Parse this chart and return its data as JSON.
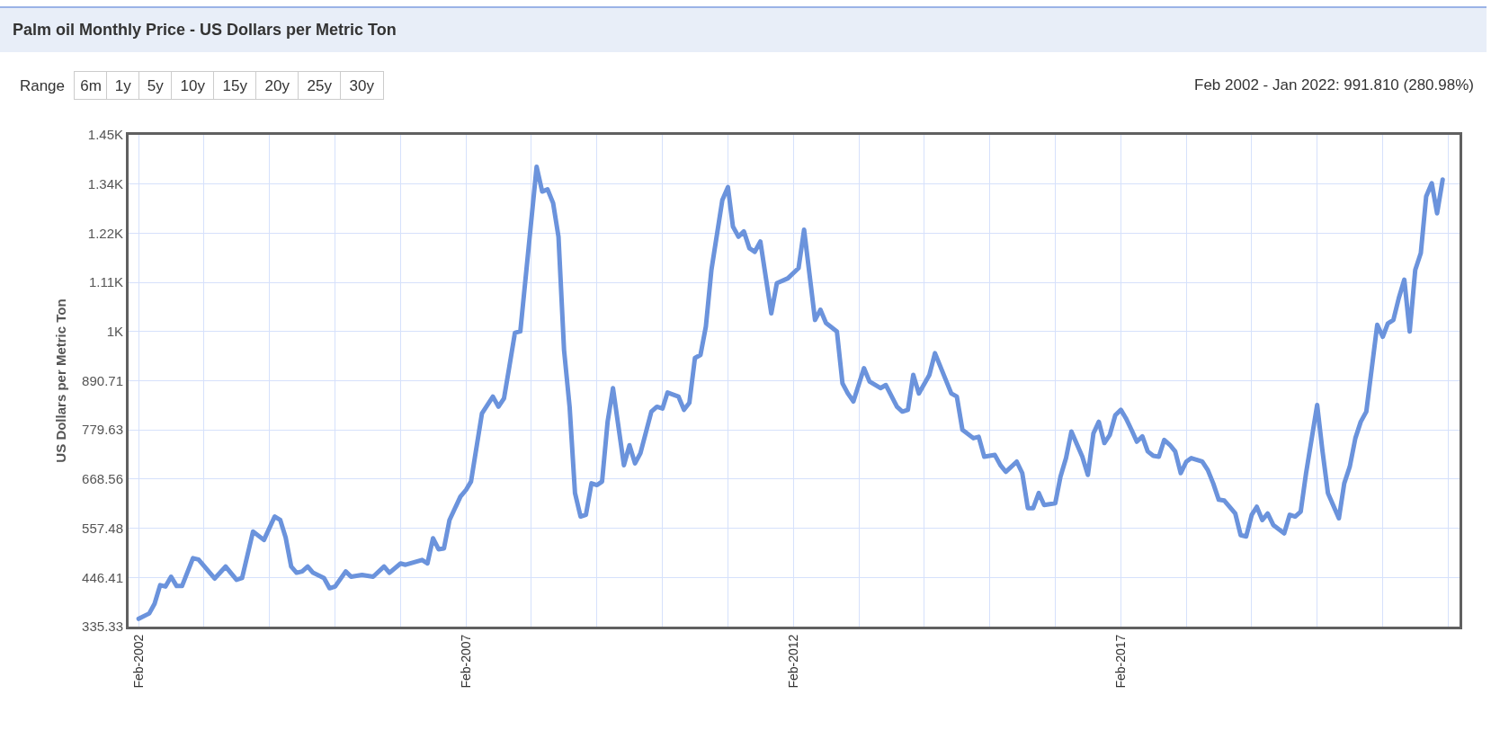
{
  "chart_data": {
    "type": "line",
    "title": "Palm oil Monthly Price - US Dollars per Metric Ton",
    "subtitle": "Feb 2002 - Jan 2022: 991.810 (280.98%)",
    "annotations": [
      "Range",
      "6m",
      "1y",
      "5y",
      "10y",
      "15y",
      "20y",
      "25y",
      "30y"
    ],
    "ylabel": "US Dollars per Metric Ton",
    "x": [
      "2002-02",
      "2002-04",
      "2002-05",
      "2002-06",
      "2002-07",
      "2002-08",
      "2002-09",
      "2002-10",
      "2002-12",
      "2003-01",
      "2003-04",
      "2003-06",
      "2003-08",
      "2003-09",
      "2003-11",
      "2004-01",
      "2004-03",
      "2004-04",
      "2004-05",
      "2004-06",
      "2004-07",
      "2004-08",
      "2004-09",
      "2004-10",
      "2004-12",
      "2005-01",
      "2005-02",
      "2005-04",
      "2005-05",
      "2005-07",
      "2005-09",
      "2005-11",
      "2005-12",
      "2006-02",
      "2006-03",
      "2006-06",
      "2006-07",
      "2006-08",
      "2006-09",
      "2006-10",
      "2006-11",
      "2007-01",
      "2007-02",
      "2007-03",
      "2007-05",
      "2007-07",
      "2007-08",
      "2007-09",
      "2007-10",
      "2007-11",
      "2007-12",
      "2008-03",
      "2008-04",
      "2008-05",
      "2008-06",
      "2008-07",
      "2008-08",
      "2008-09",
      "2008-10",
      "2008-11",
      "2008-12",
      "2009-01",
      "2009-02",
      "2009-03",
      "2009-04",
      "2009-05",
      "2009-07",
      "2009-08",
      "2009-09",
      "2009-10",
      "2009-12",
      "2010-01",
      "2010-02",
      "2010-03",
      "2010-05",
      "2010-06",
      "2010-07",
      "2010-08",
      "2010-09",
      "2010-10",
      "2010-11",
      "2011-01",
      "2011-02",
      "2011-03",
      "2011-04",
      "2011-05",
      "2011-06",
      "2011-07",
      "2011-08",
      "2011-10",
      "2011-11",
      "2012-01",
      "2012-03",
      "2012-04",
      "2012-06",
      "2012-07",
      "2012-08",
      "2012-10",
      "2012-11",
      "2012-12",
      "2013-01",
      "2013-03",
      "2013-04",
      "2013-06",
      "2013-07",
      "2013-09",
      "2013-10",
      "2013-11",
      "2013-12",
      "2014-01",
      "2014-03",
      "2014-04",
      "2014-07",
      "2014-08",
      "2014-09",
      "2014-11",
      "2014-12",
      "2015-01",
      "2015-03",
      "2015-04",
      "2015-05",
      "2015-07",
      "2015-08",
      "2015-09",
      "2015-10",
      "2015-11",
      "2015-12",
      "2016-02",
      "2016-03",
      "2016-04",
      "2016-05",
      "2016-07",
      "2016-08",
      "2016-09",
      "2016-10",
      "2016-11",
      "2016-12",
      "2017-01",
      "2017-02",
      "2017-03",
      "2017-04",
      "2017-05",
      "2017-06",
      "2017-07",
      "2017-08",
      "2017-09",
      "2017-10",
      "2017-11",
      "2017-12",
      "2018-01",
      "2018-02",
      "2018-03",
      "2018-05",
      "2018-06",
      "2018-07",
      "2018-08",
      "2018-09",
      "2018-11",
      "2018-12",
      "2019-01",
      "2019-02",
      "2019-03",
      "2019-04",
      "2019-05",
      "2019-06",
      "2019-08",
      "2019-09",
      "2019-10",
      "2019-11",
      "2019-12",
      "2020-02",
      "2020-03",
      "2020-04",
      "2020-06",
      "2020-07",
      "2020-08",
      "2020-09",
      "2020-10",
      "2020-11",
      "2021-01",
      "2021-02",
      "2021-03",
      "2021-04",
      "2021-05",
      "2021-06",
      "2021-07",
      "2021-08",
      "2021-09",
      "2021-10",
      "2021-11",
      "2021-12",
      "2022-01"
    ],
    "series": [
      {
        "color": "#6b93dc",
        "values": [
          353,
          365,
          387,
          429,
          426,
          448,
          427,
          427,
          490,
          487,
          444,
          471,
          441,
          445,
          550,
          531,
          584,
          576,
          537,
          471,
          457,
          460,
          471,
          457,
          445,
          422,
          426,
          460,
          448,
          452,
          448,
          471,
          457,
          478,
          475,
          486,
          478,
          535,
          510,
          512,
          576,
          629,
          644,
          663,
          817,
          855,
          832,
          851,
          923,
          999,
          1002,
          1374,
          1318,
          1323,
          1292,
          1216,
          960,
          832,
          637,
          584,
          588,
          659,
          655,
          663,
          798,
          874,
          700,
          745,
          704,
          727,
          821,
          832,
          828,
          864,
          855,
          825,
          841,
          942,
          949,
          1013,
          1141,
          1299,
          1328,
          1239,
          1216,
          1228,
          1190,
          1182,
          1205,
          1043,
          1111,
          1122,
          1145,
          1232,
          1028,
          1051,
          1021,
          1002,
          885,
          862,
          844,
          919,
          889,
          874,
          881,
          832,
          821,
          825,
          904,
          862,
          904,
          953,
          862,
          855,
          780,
          761,
          764,
          719,
          723,
          700,
          685,
          708,
          682,
          603,
          603,
          637,
          610,
          614,
          674,
          716,
          776,
          719,
          678,
          772,
          798,
          750,
          768,
          813,
          825,
          806,
          780,
          753,
          765,
          731,
          721,
          719,
          757,
          746,
          731,
          682,
          708,
          716,
          708,
          689,
          659,
          622,
          620,
          591,
          542,
          539,
          588,
          606,
          576,
          591,
          565,
          546,
          588,
          584,
          595,
          682,
          836,
          734,
          637,
          580,
          659,
          697,
          761,
          798,
          821,
          1017,
          990,
          1020,
          1028,
          1077,
          1119,
          1002,
          1141,
          1179,
          1307,
          1337,
          1269,
          1345
        ]
      }
    ],
    "xlim": [
      "2001-12-07",
      "2022-04-05"
    ],
    "xticks": [
      {
        "value": "2002-02",
        "label": "Feb-2002"
      },
      {
        "value": "2003-02",
        "label": null
      },
      {
        "value": "2004-02",
        "label": null
      },
      {
        "value": "2005-02",
        "label": null
      },
      {
        "value": "2006-02",
        "label": null
      },
      {
        "value": "2007-02",
        "label": "Feb-2007"
      },
      {
        "value": "2008-02",
        "label": null
      },
      {
        "value": "2009-02",
        "label": null
      },
      {
        "value": "2010-02",
        "label": null
      },
      {
        "value": "2011-02",
        "label": null
      },
      {
        "value": "2012-02",
        "label": "Feb-2012"
      },
      {
        "value": "2013-02",
        "label": null
      },
      {
        "value": "2014-02",
        "label": null
      },
      {
        "value": "2015-02",
        "label": null
      },
      {
        "value": "2016-02",
        "label": null
      },
      {
        "value": "2017-02",
        "label": "Feb-2017"
      },
      {
        "value": "2018-02",
        "label": null
      },
      {
        "value": "2019-02",
        "label": null
      },
      {
        "value": "2020-02",
        "label": null
      },
      {
        "value": "2021-02",
        "label": null
      },
      {
        "value": "2022-02",
        "label": null
      }
    ],
    "ylim": [
      335.33,
      1446.08
    ],
    "yticks": [
      335.33,
      446.41,
      557.48,
      668.56,
      779.63,
      890.71,
      {
        "value": 1001.78,
        "label": "1K"
      },
      {
        "value": 1112.86,
        "label": "1.11K"
      },
      {
        "value": 1223.93,
        "label": "1.22K"
      },
      {
        "value": 1335.0,
        "label": "1.34K"
      },
      {
        "value": 1446.08,
        "label": "1.45K"
      }
    ],
    "grid": true,
    "marker": "none",
    "line_style": "solid"
  }
}
